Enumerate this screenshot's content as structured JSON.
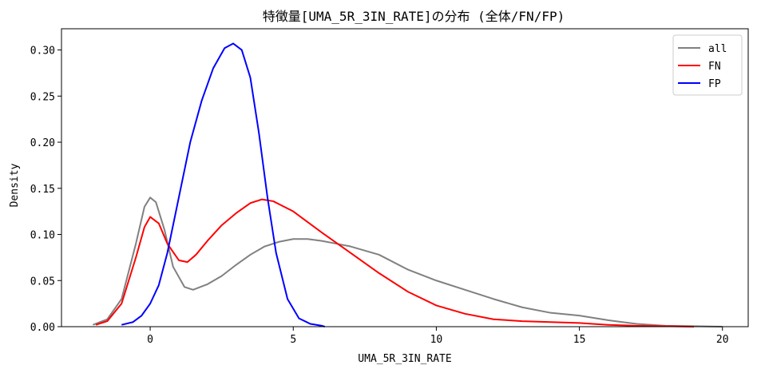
{
  "chart_data": {
    "type": "line",
    "title": "特徴量[UMA_5R_3IN_RATE]の分布 (全体/FN/FP)",
    "xlabel": "UMA_5R_3IN_RATE",
    "ylabel": "Density",
    "xlim": [
      -3.1,
      20.9
    ],
    "ylim": [
      0,
      0.323
    ],
    "xticks": [
      0,
      5,
      10,
      15,
      20
    ],
    "yticks": [
      0.0,
      0.05,
      0.1,
      0.15,
      0.2,
      0.25,
      0.3
    ],
    "ytick_labels": [
      "0.00",
      "0.05",
      "0.10",
      "0.15",
      "0.20",
      "0.25",
      "0.30"
    ],
    "grid": false,
    "legend_position": "top-right",
    "series": [
      {
        "name": "all",
        "color": "#808080",
        "x": [
          -2.0,
          -1.5,
          -1.0,
          -0.5,
          -0.2,
          0.0,
          0.2,
          0.5,
          0.8,
          1.2,
          1.5,
          2.0,
          2.5,
          3.0,
          3.5,
          4.0,
          4.5,
          5.0,
          5.5,
          6.0,
          6.5,
          7.0,
          8.0,
          9.0,
          10.0,
          11.0,
          12.0,
          13.0,
          14.0,
          15.0,
          16.0,
          17.0,
          18.0,
          19.0,
          20.0
        ],
        "y": [
          0.002,
          0.008,
          0.03,
          0.09,
          0.13,
          0.14,
          0.135,
          0.105,
          0.065,
          0.043,
          0.04,
          0.046,
          0.055,
          0.067,
          0.078,
          0.087,
          0.092,
          0.095,
          0.095,
          0.093,
          0.09,
          0.087,
          0.078,
          0.062,
          0.05,
          0.04,
          0.03,
          0.021,
          0.015,
          0.012,
          0.007,
          0.003,
          0.001,
          0.0005,
          0.0
        ]
      },
      {
        "name": "FN",
        "color": "#ff0000",
        "x": [
          -1.9,
          -1.5,
          -1.0,
          -0.5,
          -0.2,
          0.0,
          0.3,
          0.6,
          1.0,
          1.3,
          1.6,
          2.0,
          2.5,
          3.0,
          3.5,
          3.9,
          4.3,
          5.0,
          6.0,
          7.0,
          8.0,
          9.0,
          10.0,
          11.0,
          12.0,
          13.0,
          14.0,
          15.0,
          16.0,
          17.0,
          18.0,
          19.0
        ],
        "y": [
          0.002,
          0.006,
          0.025,
          0.075,
          0.108,
          0.119,
          0.112,
          0.09,
          0.072,
          0.07,
          0.078,
          0.093,
          0.11,
          0.123,
          0.134,
          0.138,
          0.136,
          0.125,
          0.102,
          0.08,
          0.058,
          0.038,
          0.023,
          0.014,
          0.008,
          0.006,
          0.005,
          0.004,
          0.002,
          0.001,
          0.0005,
          0.0
        ]
      },
      {
        "name": "FP",
        "color": "#0000ff",
        "x": [
          -1.0,
          -0.6,
          -0.3,
          0.0,
          0.3,
          0.6,
          1.0,
          1.4,
          1.8,
          2.2,
          2.6,
          2.9,
          3.2,
          3.5,
          3.8,
          4.1,
          4.4,
          4.8,
          5.2,
          5.6,
          6.0,
          6.1
        ],
        "y": [
          0.002,
          0.005,
          0.012,
          0.025,
          0.045,
          0.08,
          0.14,
          0.2,
          0.245,
          0.28,
          0.302,
          0.307,
          0.3,
          0.27,
          0.21,
          0.14,
          0.08,
          0.03,
          0.009,
          0.003,
          0.001,
          0.0
        ]
      }
    ]
  }
}
